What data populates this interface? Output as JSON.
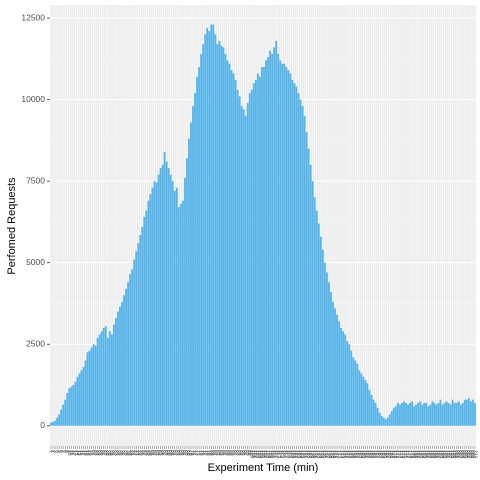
{
  "chart_data": {
    "type": "bar",
    "x_label": "Experiment Time (min)",
    "y_label": "Perfomed Requests",
    "color": "#56b4e9",
    "grid": true,
    "categories": [
      "1",
      "2",
      "3",
      "4",
      "5",
      "6",
      "7",
      "8",
      "9",
      "10",
      "11",
      "12",
      "13",
      "14",
      "15",
      "16",
      "17",
      "18",
      "19",
      "20",
      "21",
      "22",
      "23",
      "24",
      "25",
      "26",
      "27",
      "28",
      "29",
      "30",
      "31",
      "32",
      "33",
      "34",
      "35",
      "36",
      "37",
      "38",
      "39",
      "40",
      "41",
      "42",
      "43",
      "44",
      "45",
      "46",
      "47",
      "48",
      "49",
      "50",
      "51",
      "52",
      "53",
      "54",
      "55",
      "56",
      "57",
      "58",
      "59",
      "60",
      "61",
      "62",
      "63",
      "64",
      "65",
      "66",
      "67",
      "68",
      "69",
      "70",
      "71",
      "72",
      "73",
      "74",
      "75",
      "76",
      "77",
      "78",
      "79",
      "80",
      "81",
      "82",
      "83",
      "84",
      "85",
      "86",
      "87",
      "88",
      "89",
      "90",
      "91",
      "92",
      "93",
      "94",
      "95",
      "96",
      "97",
      "98",
      "99",
      "100",
      "101",
      "102",
      "103",
      "104",
      "105",
      "106",
      "107",
      "108",
      "109",
      "110",
      "111",
      "112",
      "113",
      "114",
      "115",
      "116",
      "117",
      "118",
      "119",
      "120",
      "121",
      "122",
      "123",
      "124",
      "125",
      "126",
      "127",
      "128",
      "129",
      "130",
      "131",
      "132",
      "133",
      "134",
      "135",
      "136",
      "137",
      "138",
      "139",
      "140",
      "141",
      "142",
      "143",
      "144",
      "145",
      "146",
      "147",
      "148",
      "149",
      "150",
      "151",
      "152",
      "153",
      "154",
      "155",
      "156",
      "157",
      "158",
      "159",
      "160",
      "161",
      "162",
      "163",
      "164",
      "165",
      "166",
      "167",
      "168",
      "169",
      "170",
      "171",
      "172",
      "173",
      "174",
      "175",
      "176",
      "177",
      "178",
      "179",
      "180",
      "181",
      "182",
      "183",
      "184",
      "185",
      "186",
      "187",
      "188",
      "189",
      "190",
      "191",
      "192",
      "193",
      "194",
      "195",
      "196",
      "197",
      "198",
      "199",
      "200",
      "201",
      "202",
      "203",
      "204",
      "205",
      "206",
      "207",
      "208",
      "209",
      "210"
    ],
    "values": [
      100,
      120,
      150,
      250,
      350,
      500,
      650,
      800,
      1000,
      1150,
      1200,
      1250,
      1350,
      1500,
      1600,
      1700,
      1800,
      2000,
      2250,
      2300,
      2400,
      2500,
      2450,
      2700,
      2800,
      2900,
      3000,
      3050,
      2700,
      2900,
      2800,
      3100,
      3300,
      3500,
      3650,
      3800,
      4000,
      4200,
      4400,
      4650,
      4800,
      5100,
      5350,
      5600,
      5850,
      6100,
      6400,
      6600,
      6900,
      7100,
      7300,
      7500,
      7450,
      7700,
      7900,
      8000,
      8400,
      8100,
      7900,
      7700,
      7500,
      7200,
      7300,
      6700,
      6800,
      6900,
      7600,
      8200,
      8800,
      9300,
      9800,
      10200,
      10700,
      11000,
      11400,
      11700,
      12000,
      12200,
      12100,
      12300,
      12300,
      12000,
      11700,
      11800,
      11650,
      11600,
      11400,
      11200,
      11100,
      10900,
      10800,
      10600,
      10300,
      10100,
      9800,
      9700,
      9500,
      9900,
      10200,
      10300,
      10500,
      10600,
      10800,
      10700,
      11000,
      11000,
      11200,
      11300,
      11500,
      11400,
      11600,
      11800,
      11400,
      11200,
      11100,
      11100,
      11000,
      10900,
      10800,
      10600,
      10500,
      10400,
      10200,
      10000,
      9800,
      9500,
      9000,
      8500,
      8000,
      7500,
      7000,
      6600,
      6200,
      5800,
      5400,
      5000,
      4700,
      4400,
      4100,
      3800,
      3600,
      3400,
      3200,
      3000,
      2900,
      2800,
      2600,
      2500,
      2300,
      2100,
      2000,
      1900,
      1700,
      1600,
      1500,
      1400,
      1300,
      1100,
      950,
      800,
      700,
      550,
      400,
      300,
      250,
      200,
      250,
      350,
      450,
      550,
      600,
      700,
      650,
      700,
      750,
      700,
      650,
      700,
      750,
      600,
      650,
      700,
      750,
      650,
      700,
      700,
      600,
      650,
      750,
      700,
      650,
      700,
      800,
      650,
      700,
      750,
      700,
      650,
      800,
      700,
      700,
      750,
      650,
      700,
      800,
      800,
      850,
      750,
      800,
      700
    ],
    "ylim": [
      -620,
      12900
    ],
    "yticks": [
      0,
      2500,
      5000,
      7500,
      10000,
      12500
    ]
  }
}
